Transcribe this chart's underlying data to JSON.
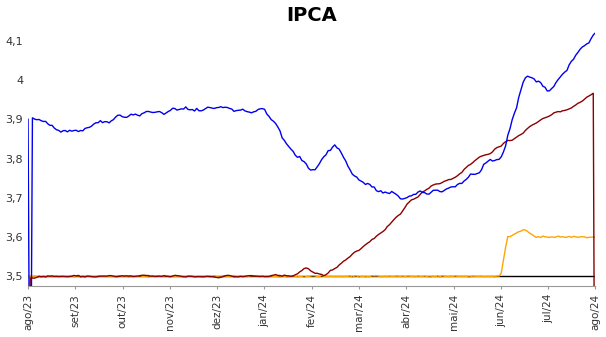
{
  "title": "IPCA",
  "title_fontsize": 14,
  "title_fontweight": "bold",
  "ylim": [
    3.475,
    4.13
  ],
  "tick_labels": [
    "ago/23",
    "set/23",
    "out/23",
    "nov/23",
    "dez/23",
    "jan/24",
    "fev/24",
    "mar/24",
    "abr/24",
    "mai/24",
    "jun/24",
    "jul/24",
    "ago/24"
  ],
  "yticks": [
    3.5,
    3.6,
    3.7,
    3.8,
    3.9,
    4.0,
    4.1
  ],
  "ytick_labels": [
    "3,5",
    "3,6",
    "3,7",
    "3,8",
    "3,9",
    "4",
    "4,1"
  ],
  "line_colors": {
    "blue": "#0000EE",
    "darkred": "#8B0000",
    "orange": "#FFA500",
    "black": "#000000"
  },
  "linewidth": 1.0,
  "background_color": "#FFFFFF"
}
